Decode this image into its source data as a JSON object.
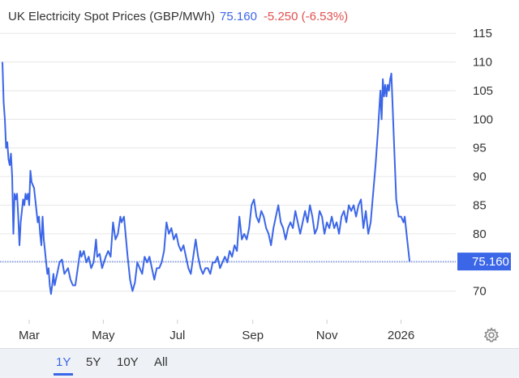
{
  "header": {
    "title": "UK Electricity Spot Prices (GBP/MWh)",
    "price": "75.160",
    "change": "-5.250 (-6.53%)"
  },
  "last_price_label": "75.160",
  "ranges": [
    {
      "label": "1Y",
      "active": true
    },
    {
      "label": "5Y",
      "active": false
    },
    {
      "label": "10Y",
      "active": false
    },
    {
      "label": "All",
      "active": false
    }
  ],
  "settings_icon": "gear-icon",
  "colors": {
    "line": "#3b66e8",
    "change": "#e0504e",
    "grid": "#e6e6e6"
  },
  "chart_data": {
    "type": "line",
    "title": "UK Electricity Spot Prices (GBP/MWh)",
    "y_ticks": [
      70,
      75,
      80,
      85,
      90,
      95,
      100,
      105,
      110,
      115
    ],
    "y_tick_labels": [
      "70",
      "",
      "80",
      "85",
      "90",
      "95",
      "100",
      "105",
      "110",
      "115"
    ],
    "ylim": [
      65,
      118
    ],
    "x_ticks": [
      {
        "label": "Mar",
        "date": "2025-03-01"
      },
      {
        "label": "May",
        "date": "2025-05-01"
      },
      {
        "label": "Jul",
        "date": "2025-07-01"
      },
      {
        "label": "Sep",
        "date": "2025-09-01"
      },
      {
        "label": "Nov",
        "date": "2025-11-01"
      },
      {
        "label": "2026",
        "date": "2026-01-01"
      }
    ],
    "xlim": [
      "2025-02-05",
      "2026-02-15"
    ],
    "grid": true,
    "last_value": 75.16,
    "series": [
      {
        "points": [
          [
            "2025-02-07",
            110
          ],
          [
            "2025-02-08",
            103
          ],
          [
            "2025-02-09",
            100
          ],
          [
            "2025-02-10",
            95
          ],
          [
            "2025-02-11",
            96
          ],
          [
            "2025-02-12",
            93
          ],
          [
            "2025-02-13",
            92
          ],
          [
            "2025-02-14",
            94
          ],
          [
            "2025-02-15",
            90
          ],
          [
            "2025-02-16",
            80
          ],
          [
            "2025-02-17",
            87
          ],
          [
            "2025-02-18",
            86
          ],
          [
            "2025-02-19",
            87
          ],
          [
            "2025-02-20",
            83
          ],
          [
            "2025-02-21",
            78
          ],
          [
            "2025-02-22",
            82
          ],
          [
            "2025-02-23",
            84
          ],
          [
            "2025-02-24",
            86
          ],
          [
            "2025-02-25",
            85
          ],
          [
            "2025-02-26",
            87
          ],
          [
            "2025-02-27",
            86
          ],
          [
            "2025-02-28",
            87
          ],
          [
            "2025-03-01",
            85
          ],
          [
            "2025-03-02",
            91
          ],
          [
            "2025-03-03",
            89
          ],
          [
            "2025-03-05",
            88
          ],
          [
            "2025-03-06",
            86
          ],
          [
            "2025-03-07",
            84
          ],
          [
            "2025-03-08",
            82
          ],
          [
            "2025-03-09",
            83
          ],
          [
            "2025-03-10",
            80
          ],
          [
            "2025-03-11",
            78
          ],
          [
            "2025-03-12",
            83
          ],
          [
            "2025-03-13",
            79
          ],
          [
            "2025-03-14",
            77
          ],
          [
            "2025-03-15",
            75
          ],
          [
            "2025-03-16",
            73
          ],
          [
            "2025-03-17",
            74
          ],
          [
            "2025-03-18",
            71
          ],
          [
            "2025-03-19",
            69.5
          ],
          [
            "2025-03-20",
            71
          ],
          [
            "2025-03-21",
            73
          ],
          [
            "2025-03-22",
            71
          ],
          [
            "2025-03-24",
            73
          ],
          [
            "2025-03-26",
            75
          ],
          [
            "2025-03-28",
            75.5
          ],
          [
            "2025-03-30",
            73
          ],
          [
            "2025-04-02",
            74
          ],
          [
            "2025-04-04",
            72
          ],
          [
            "2025-04-06",
            71
          ],
          [
            "2025-04-08",
            71
          ],
          [
            "2025-04-10",
            74
          ],
          [
            "2025-04-12",
            77
          ],
          [
            "2025-04-13",
            76
          ],
          [
            "2025-04-15",
            77
          ],
          [
            "2025-04-17",
            75
          ],
          [
            "2025-04-19",
            76
          ],
          [
            "2025-04-21",
            74
          ],
          [
            "2025-04-23",
            75
          ],
          [
            "2025-04-25",
            79
          ],
          [
            "2025-04-26",
            76
          ],
          [
            "2025-04-28",
            76.5
          ],
          [
            "2025-04-30",
            74
          ],
          [
            "2025-05-03",
            76
          ],
          [
            "2025-05-05",
            77
          ],
          [
            "2025-05-07",
            76
          ],
          [
            "2025-05-09",
            82
          ],
          [
            "2025-05-11",
            79
          ],
          [
            "2025-05-13",
            80
          ],
          [
            "2025-05-15",
            83
          ],
          [
            "2025-05-16",
            82
          ],
          [
            "2025-05-18",
            83
          ],
          [
            "2025-05-21",
            76
          ],
          [
            "2025-05-23",
            72
          ],
          [
            "2025-05-25",
            70
          ],
          [
            "2025-05-27",
            71.5
          ],
          [
            "2025-05-29",
            75
          ],
          [
            "2025-05-31",
            74
          ],
          [
            "2025-06-02",
            73
          ],
          [
            "2025-06-04",
            76
          ],
          [
            "2025-06-06",
            75
          ],
          [
            "2025-06-08",
            76
          ],
          [
            "2025-06-10",
            74
          ],
          [
            "2025-06-12",
            72
          ],
          [
            "2025-06-14",
            74
          ],
          [
            "2025-06-16",
            74
          ],
          [
            "2025-06-18",
            75
          ],
          [
            "2025-06-20",
            77
          ],
          [
            "2025-06-22",
            82
          ],
          [
            "2025-06-24",
            80
          ],
          [
            "2025-06-26",
            81
          ],
          [
            "2025-06-28",
            79
          ],
          [
            "2025-06-30",
            80
          ],
          [
            "2025-07-02",
            78
          ],
          [
            "2025-07-04",
            77
          ],
          [
            "2025-07-06",
            78
          ],
          [
            "2025-07-08",
            76
          ],
          [
            "2025-07-10",
            74
          ],
          [
            "2025-07-12",
            73
          ],
          [
            "2025-07-14",
            76
          ],
          [
            "2025-07-16",
            79
          ],
          [
            "2025-07-18",
            76
          ],
          [
            "2025-07-20",
            74
          ],
          [
            "2025-07-22",
            73
          ],
          [
            "2025-07-24",
            74
          ],
          [
            "2025-07-26",
            74
          ],
          [
            "2025-07-28",
            73
          ],
          [
            "2025-07-30",
            75
          ],
          [
            "2025-08-01",
            75
          ],
          [
            "2025-08-03",
            76
          ],
          [
            "2025-08-05",
            74
          ],
          [
            "2025-08-07",
            75
          ],
          [
            "2025-08-09",
            76
          ],
          [
            "2025-08-11",
            75
          ],
          [
            "2025-08-13",
            77
          ],
          [
            "2025-08-15",
            76
          ],
          [
            "2025-08-17",
            78
          ],
          [
            "2025-08-19",
            77
          ],
          [
            "2025-08-21",
            83
          ],
          [
            "2025-08-23",
            79
          ],
          [
            "2025-08-25",
            80
          ],
          [
            "2025-08-27",
            79
          ],
          [
            "2025-08-29",
            81
          ],
          [
            "2025-08-31",
            85
          ],
          [
            "2025-09-02",
            86
          ],
          [
            "2025-09-04",
            83
          ],
          [
            "2025-09-06",
            82
          ],
          [
            "2025-09-08",
            84
          ],
          [
            "2025-09-10",
            83
          ],
          [
            "2025-09-12",
            81
          ],
          [
            "2025-09-14",
            80
          ],
          [
            "2025-09-16",
            78
          ],
          [
            "2025-09-18",
            81
          ],
          [
            "2025-09-20",
            83
          ],
          [
            "2025-09-22",
            85
          ],
          [
            "2025-09-24",
            82
          ],
          [
            "2025-09-26",
            81
          ],
          [
            "2025-09-28",
            79
          ],
          [
            "2025-09-30",
            81
          ],
          [
            "2025-10-02",
            82
          ],
          [
            "2025-10-04",
            81
          ],
          [
            "2025-10-06",
            84
          ],
          [
            "2025-10-08",
            82
          ],
          [
            "2025-10-10",
            80
          ],
          [
            "2025-10-12",
            82
          ],
          [
            "2025-10-14",
            84
          ],
          [
            "2025-10-16",
            82
          ],
          [
            "2025-10-18",
            85
          ],
          [
            "2025-10-20",
            83
          ],
          [
            "2025-10-22",
            80
          ],
          [
            "2025-10-24",
            81
          ],
          [
            "2025-10-26",
            84
          ],
          [
            "2025-10-28",
            83
          ],
          [
            "2025-10-30",
            80
          ],
          [
            "2025-11-01",
            82
          ],
          [
            "2025-11-03",
            81
          ],
          [
            "2025-11-05",
            83
          ],
          [
            "2025-11-07",
            81
          ],
          [
            "2025-11-09",
            82
          ],
          [
            "2025-11-11",
            80
          ],
          [
            "2025-11-13",
            83
          ],
          [
            "2025-11-15",
            84
          ],
          [
            "2025-11-17",
            82
          ],
          [
            "2025-11-19",
            85
          ],
          [
            "2025-11-21",
            84
          ],
          [
            "2025-11-23",
            85
          ],
          [
            "2025-11-25",
            83
          ],
          [
            "2025-11-27",
            85
          ],
          [
            "2025-11-29",
            86
          ],
          [
            "2025-12-01",
            81
          ],
          [
            "2025-12-03",
            84
          ],
          [
            "2025-12-05",
            80
          ],
          [
            "2025-12-07",
            82
          ],
          [
            "2025-12-09",
            87
          ],
          [
            "2025-12-11",
            92
          ],
          [
            "2025-12-13",
            98
          ],
          [
            "2025-12-15",
            105
          ],
          [
            "2025-12-16",
            100
          ],
          [
            "2025-12-17",
            107
          ],
          [
            "2025-12-18",
            104
          ],
          [
            "2025-12-19",
            106
          ],
          [
            "2025-12-20",
            104
          ],
          [
            "2025-12-21",
            106
          ],
          [
            "2025-12-22",
            105
          ],
          [
            "2025-12-23",
            107
          ],
          [
            "2025-12-24",
            108
          ],
          [
            "2025-12-26",
            97
          ],
          [
            "2025-12-28",
            86
          ],
          [
            "2025-12-30",
            83
          ],
          [
            "2026-01-01",
            83
          ],
          [
            "2026-01-03",
            82
          ],
          [
            "2026-01-04",
            83
          ],
          [
            "2026-01-06",
            79
          ],
          [
            "2026-01-08",
            75.16
          ]
        ]
      }
    ]
  }
}
